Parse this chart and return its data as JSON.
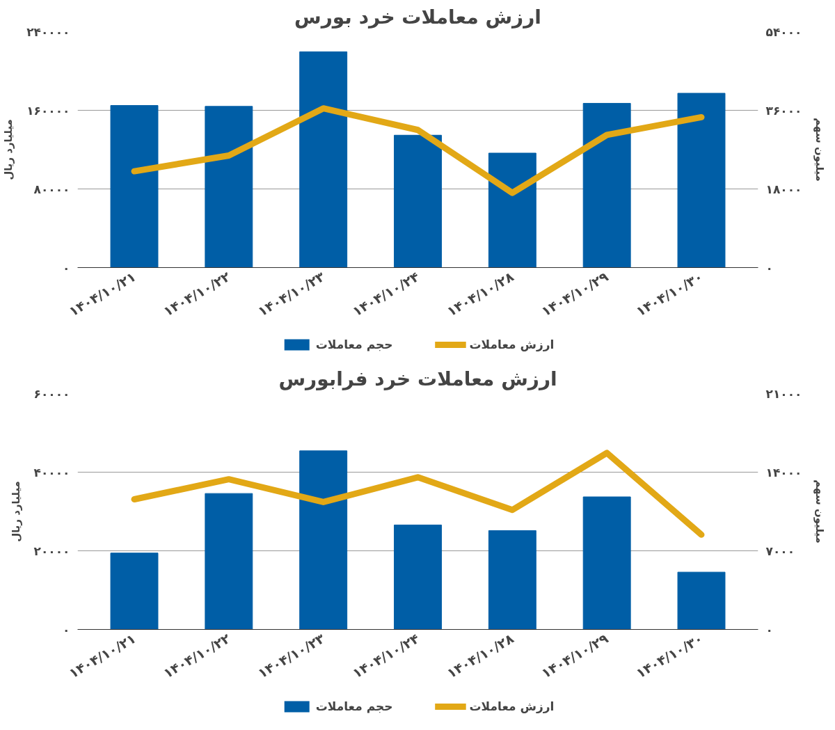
{
  "chart_data": [
    {
      "type": "bar",
      "title": "ارزش معاملات خرد بورس",
      "ylabel": "میلیارد ریال",
      "y2label": "میلیون سهم",
      "categories": [
        "۱۴۰۴/۱۰/۲۱",
        "۱۴۰۴/۱۰/۲۲",
        "۱۴۰۴/۱۰/۲۳",
        "۱۴۰۴/۱۰/۲۴",
        "۱۴۰۴/۱۰/۲۸",
        "۱۴۰۴/۱۰/۲۹",
        "۱۴۰۴/۱۰/۳۰"
      ],
      "ylim": [
        0,
        240000
      ],
      "yticks": [
        {
          "value": 0,
          "label": "۰"
        },
        {
          "value": 80000,
          "label": "۸۰۰۰۰"
        },
        {
          "value": 160000,
          "label": "۱۶۰۰۰۰"
        },
        {
          "value": 240000,
          "label": "۲۴۰۰۰۰"
        }
      ],
      "y2lim": [
        0,
        54000
      ],
      "y2ticks": [
        {
          "value": 0,
          "label": "۰"
        },
        {
          "value": 18000,
          "label": "۱۸۰۰۰"
        },
        {
          "value": 36000,
          "label": "۳۶۰۰۰"
        },
        {
          "value": 54000,
          "label": "۵۴۰۰۰"
        }
      ],
      "grid": "y",
      "legend": "bottom",
      "series": [
        {
          "name": "حجم معاملات",
          "type": "bar",
          "axis": "y2",
          "color": "#005ea6",
          "values": [
            37100,
            36900,
            49400,
            30300,
            26200,
            37600,
            39900
          ]
        },
        {
          "name": "ارزش معاملات",
          "type": "line",
          "color": "#e2a816",
          "values": [
            98000,
            114000,
            162000,
            140000,
            76000,
            135000,
            153000
          ]
        }
      ]
    },
    {
      "type": "bar",
      "title": "ارزش معاملات خرد فرابورس",
      "ylabel": "میلیارد ریال",
      "y2label": "میلیون سهم",
      "categories": [
        "۱۴۰۴/۱۰/۲۱",
        "۱۴۰۴/۱۰/۲۲",
        "۱۴۰۴/۱۰/۲۳",
        "۱۴۰۴/۱۰/۲۴",
        "۱۴۰۴/۱۰/۲۸",
        "۱۴۰۴/۱۰/۲۹",
        "۱۴۰۴/۱۰/۳۰"
      ],
      "ylim": [
        0,
        60000
      ],
      "yticks": [
        {
          "value": 0,
          "label": "۰"
        },
        {
          "value": 20000,
          "label": "۲۰۰۰۰"
        },
        {
          "value": 40000,
          "label": "۴۰۰۰۰"
        },
        {
          "value": 60000,
          "label": "۶۰۰۰۰"
        }
      ],
      "y2lim": [
        0,
        21000
      ],
      "y2ticks": [
        {
          "value": 0,
          "label": "۰"
        },
        {
          "value": 7000,
          "label": "۷۰۰۰"
        },
        {
          "value": 14000,
          "label": "۱۴۰۰۰"
        },
        {
          "value": 21000,
          "label": "۲۱۰۰۰"
        }
      ],
      "grid": "y",
      "legend": "bottom",
      "series": [
        {
          "name": "حجم معاملات",
          "type": "bar",
          "axis": "y2",
          "color": "#005ea6",
          "values": [
            6800,
            12100,
            15900,
            9300,
            8800,
            11800,
            5100
          ]
        },
        {
          "name": "ارزش معاملات",
          "type": "line",
          "color": "#e2a816",
          "values": [
            33100,
            38200,
            32400,
            38700,
            30400,
            44900,
            24100
          ]
        }
      ]
    }
  ]
}
